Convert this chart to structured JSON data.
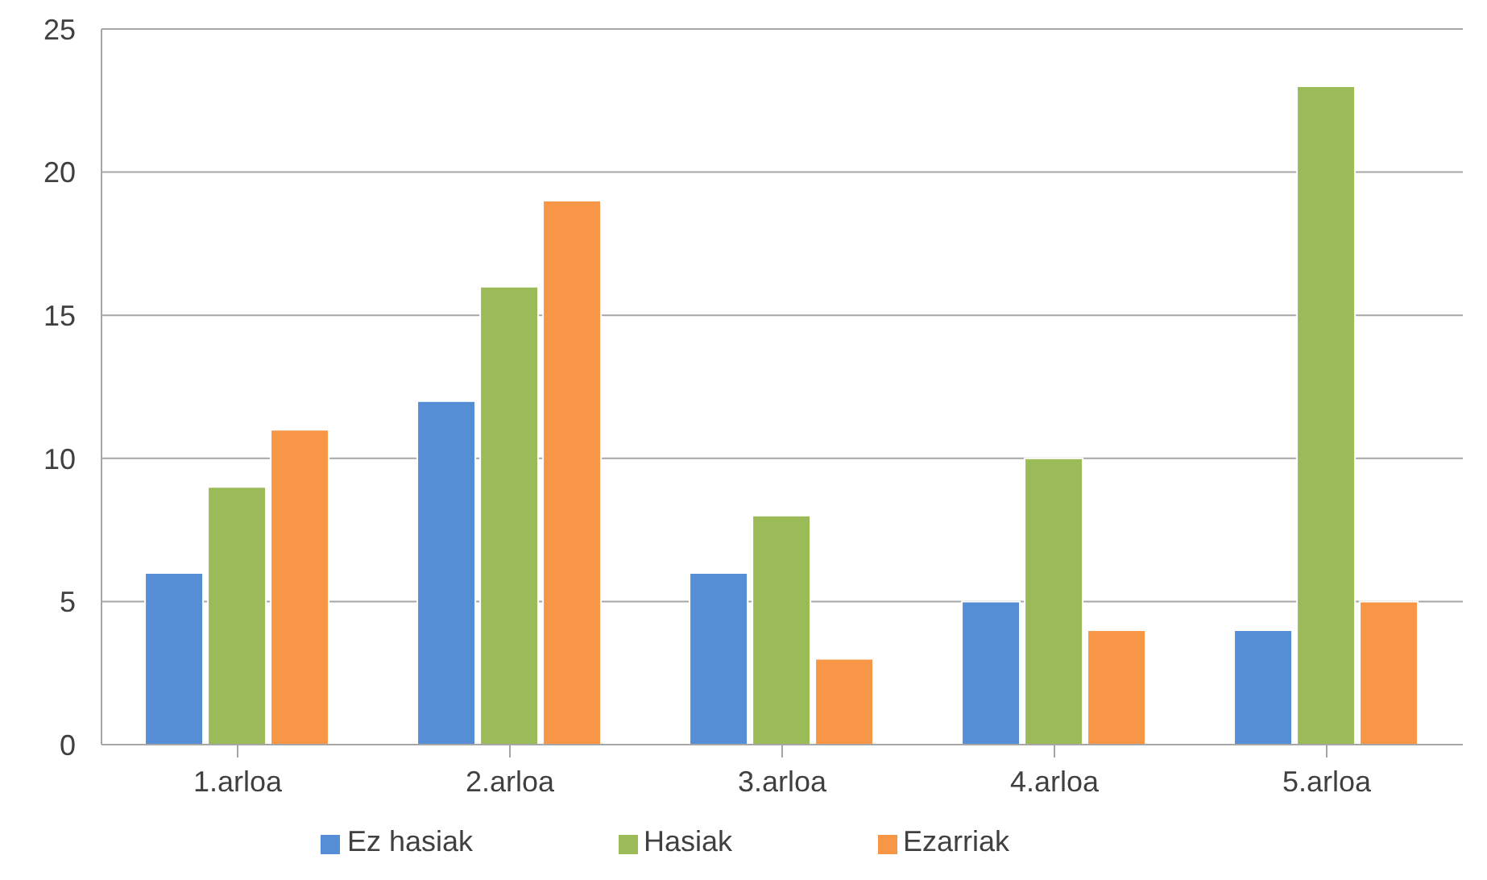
{
  "chart_data": {
    "type": "bar",
    "categories": [
      "1.arloa",
      "2.arloa",
      "3.arloa",
      "4.arloa",
      "5.arloa"
    ],
    "series": [
      {
        "name": "Ez hasiak",
        "color": "#558ed5",
        "values": [
          6,
          12,
          6,
          5,
          4
        ]
      },
      {
        "name": "Hasiak",
        "color": "#9bbb59",
        "values": [
          9,
          16,
          8,
          10,
          23
        ]
      },
      {
        "name": "Ezarriak",
        "color": "#f79646",
        "values": [
          11,
          19,
          3,
          4,
          5
        ]
      }
    ],
    "ylim": [
      0,
      25
    ],
    "yticks": [
      0,
      5,
      10,
      15,
      20,
      25
    ],
    "grid": "y",
    "legend": "bottom"
  }
}
